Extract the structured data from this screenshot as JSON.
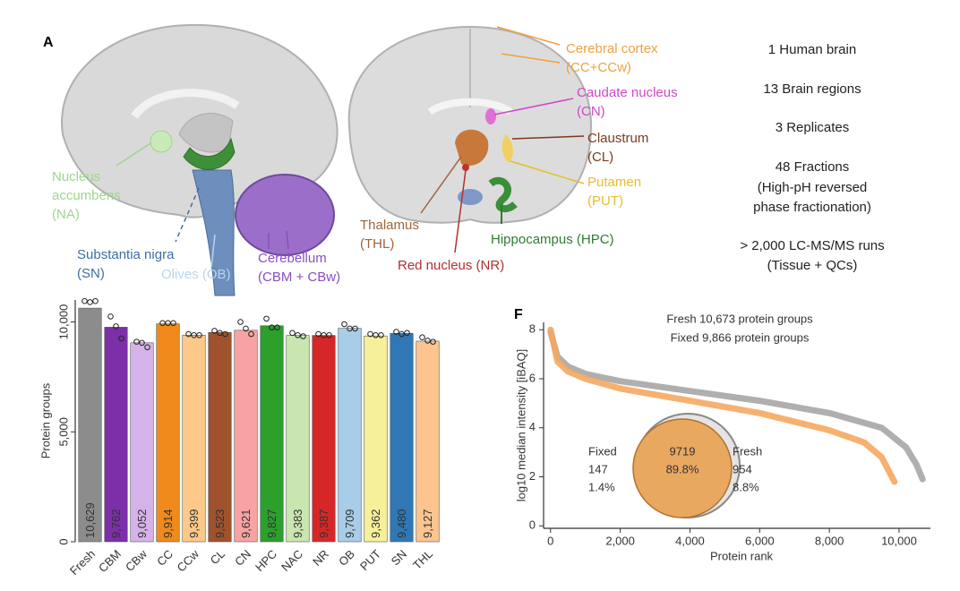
{
  "panel_a": {
    "label": "A",
    "regions": [
      {
        "lines": [
          "Nucleus",
          "accumbens",
          "(NA)"
        ],
        "color": "#9fd68c"
      },
      {
        "lines": [
          "Substantia nigra",
          "(SN)"
        ],
        "color": "#3d6ea3"
      },
      {
        "lines": [
          "Olives (OB)"
        ],
        "color": "#b9d5ec"
      },
      {
        "lines": [
          "Cerebellum",
          "(CBM + CBw)"
        ],
        "color": "#8a4fbf"
      },
      {
        "lines": [
          "Cerebral cortex",
          "(CC+CCw)"
        ],
        "color": "#f0a040"
      },
      {
        "lines": [
          "Caudate nucleus",
          "(CN)"
        ],
        "color": "#d048c8"
      },
      {
        "lines": [
          "Claustrum",
          "(CL)"
        ],
        "color": "#7a3a20"
      },
      {
        "lines": [
          "Putamen",
          "(PUT)"
        ],
        "color": "#e6bd2c"
      },
      {
        "lines": [
          "Thalamus",
          "(THL)"
        ],
        "color": "#a0643c"
      },
      {
        "lines": [
          "Hippocampus (HPC)"
        ],
        "color": "#2e7d32"
      },
      {
        "lines": [
          "Red nucleus (NR)"
        ],
        "color": "#b03030"
      }
    ],
    "summary": [
      "1 Human brain",
      "13 Brain regions",
      "3 Replicates",
      "48 Fractions",
      "(High-pH reversed",
      "phase fractionation)",
      "> 2,000 LC-MS/MS runs",
      "(Tissue + QCs)"
    ]
  },
  "chart_data": [
    {
      "type": "bar",
      "ylabel": "Protein groups",
      "categories": [
        "Fresh",
        "CBM",
        "CBw",
        "CC",
        "CCw",
        "CL",
        "CN",
        "HPC",
        "NAC",
        "NR",
        "OB",
        "PUT",
        "SN",
        "THL"
      ],
      "values": [
        10629,
        9762,
        9052,
        9914,
        9399,
        9523,
        9621,
        9827,
        9383,
        9387,
        9709,
        9362,
        9480,
        9127
      ],
      "value_labels": [
        "10,629",
        "9,762",
        "9,052",
        "9,914",
        "9,399",
        "9,523",
        "9,621",
        "9,827",
        "9,383",
        "9,387",
        "9,709",
        "9,362",
        "9,480",
        "9,127"
      ],
      "colors": [
        "#8c8c8c",
        "#7b2fa8",
        "#d6b2ea",
        "#f08a1c",
        "#fdc98a",
        "#a0522d",
        "#f7a3a3",
        "#2ca02c",
        "#c9e6b0",
        "#d62728",
        "#a8cde8",
        "#f7f09a",
        "#2f78b5",
        "#fdc48f"
      ],
      "replicates": [
        [
          10950,
          10900,
          10950
        ],
        [
          10250,
          9800,
          9250
        ],
        [
          9100,
          9050,
          8850
        ],
        [
          9950,
          9950,
          9950
        ],
        [
          9450,
          9400,
          9400
        ],
        [
          9600,
          9500,
          9450
        ],
        [
          10000,
          9700,
          9450
        ],
        [
          10150,
          9750,
          9750
        ],
        [
          9500,
          9400,
          9350
        ],
        [
          9450,
          9400,
          9400
        ],
        [
          9900,
          9700,
          9700
        ],
        [
          9450,
          9400,
          9400
        ],
        [
          9550,
          9450,
          9500
        ],
        [
          9300,
          9150,
          9100
        ]
      ],
      "ylim": [
        0,
        11000
      ],
      "yticks": [
        0,
        {
          "value": 5000,
          "label": "5,000"
        },
        {
          "value": 10000,
          "label": "10,000"
        }
      ]
    },
    {
      "type": "line",
      "panel": "F",
      "title": [
        "Fresh 10,673 protein groups",
        "Fixed 9,866 protein groups"
      ],
      "xlabel": "Protein rank",
      "ylabel": "log10 median intensity [iBAQ]",
      "series": [
        {
          "name": "Fresh",
          "color": "#a6a6a6",
          "x": [
            1,
            200,
            500,
            1000,
            2000,
            4000,
            6000,
            8000,
            9500,
            10200,
            10500,
            10673
          ],
          "values": [
            7.9,
            6.9,
            6.5,
            6.2,
            5.9,
            5.5,
            5.1,
            4.6,
            4.0,
            3.2,
            2.5,
            1.9
          ]
        },
        {
          "name": "Fixed",
          "color": "#f5a860",
          "x": [
            1,
            200,
            500,
            1000,
            2000,
            4000,
            6000,
            8000,
            9000,
            9500,
            9866
          ],
          "values": [
            8.0,
            6.7,
            6.3,
            6.0,
            5.6,
            5.1,
            4.6,
            3.9,
            3.4,
            2.8,
            1.8
          ]
        }
      ],
      "xlim": [
        -200,
        10900
      ],
      "ylim": [
        -0.1,
        8.3
      ],
      "xticks": [
        0,
        {
          "value": 2000,
          "label": "2,000"
        },
        {
          "value": 4000,
          "label": "4,000"
        },
        {
          "value": 6000,
          "label": "6,000"
        },
        {
          "value": 8000,
          "label": "8,000"
        },
        {
          "value": 10000,
          "label": "10,000"
        }
      ],
      "yticks": [
        0,
        2,
        4,
        6,
        8
      ],
      "venn": [
        {
          "count": 147,
          "percent": {
            "value": 1.4,
            "label": "1.4%"
          }
        },
        {
          "count": 9719,
          "percent": {
            "value": 89.8,
            "label": "89.8%"
          }
        },
        {
          "count": 954,
          "percent": {
            "value": 8.8,
            "label": "8.8%"
          }
        }
      ]
    }
  ]
}
